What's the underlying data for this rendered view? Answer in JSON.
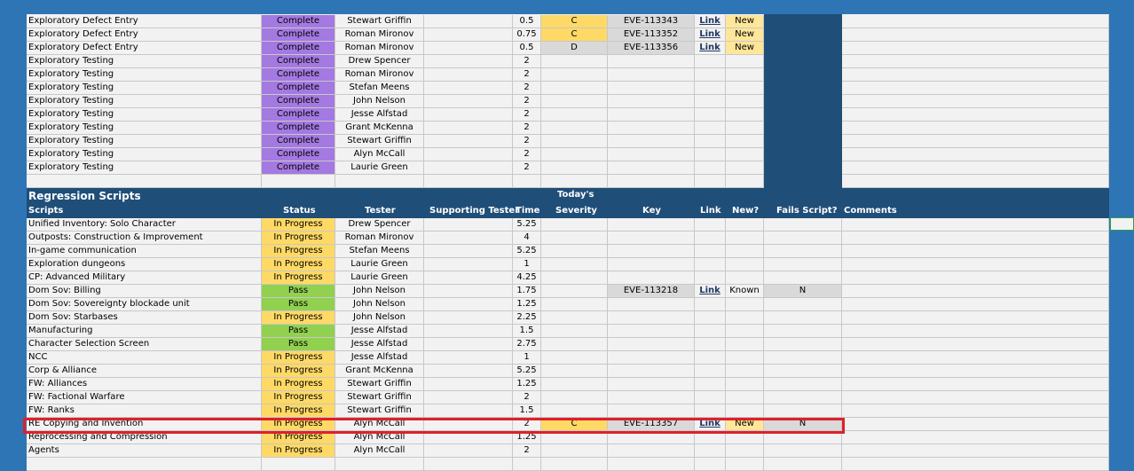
{
  "top_rows": [
    {
      "script": "Exploratory Defect Entry",
      "status": "Complete",
      "tester": "Stewart Griffin",
      "time": "0.5",
      "severity": "C",
      "key": "EVE-113343",
      "link": "Link",
      "new": "New"
    },
    {
      "script": "Exploratory Defect Entry",
      "status": "Complete",
      "tester": "Roman Mironov",
      "time": "0.75",
      "severity": "C",
      "key": "EVE-113352",
      "link": "Link",
      "new": "New"
    },
    {
      "script": "Exploratory Defect Entry",
      "status": "Complete",
      "tester": "Roman Mironov",
      "time": "0.5",
      "severity": "D",
      "key": "EVE-113356",
      "link": "Link",
      "new": "New"
    },
    {
      "script": "Exploratory Testing",
      "status": "Complete",
      "tester": "Drew Spencer",
      "time": "2"
    },
    {
      "script": "Exploratory Testing",
      "status": "Complete",
      "tester": "Roman Mironov",
      "time": "2"
    },
    {
      "script": "Exploratory Testing",
      "status": "Complete",
      "tester": "Stefan Meens",
      "time": "2"
    },
    {
      "script": "Exploratory Testing",
      "status": "Complete",
      "tester": "John Nelson",
      "time": "2"
    },
    {
      "script": "Exploratory Testing",
      "status": "Complete",
      "tester": "Jesse Alfstad",
      "time": "2"
    },
    {
      "script": "Exploratory Testing",
      "status": "Complete",
      "tester": "Grant McKenna",
      "time": "2"
    },
    {
      "script": "Exploratory Testing",
      "status": "Complete",
      "tester": "Stewart Griffin",
      "time": "2"
    },
    {
      "script": "Exploratory Testing",
      "status": "Complete",
      "tester": "Alyn McCall",
      "time": "2"
    },
    {
      "script": "Exploratory Testing",
      "status": "Complete",
      "tester": "Laurie Green",
      "time": "2"
    }
  ],
  "section": {
    "title": "Regression Scripts",
    "headers": {
      "scripts": "Scripts",
      "status": "Status",
      "tester": "Tester",
      "supporting": "Supporting Tester",
      "time": "Time",
      "severity_line1": "Today's",
      "severity_line2": "Severity",
      "key": "Key",
      "link": "Link",
      "new": "New?",
      "fails": "Fails Script?",
      "comments": "Comments"
    }
  },
  "regression_rows": [
    {
      "script": "Unified Inventory: Solo Character",
      "status": "In Progress",
      "tester": "Drew Spencer",
      "time": "5.25"
    },
    {
      "script": "Outposts: Construction & Improvement",
      "status": "In Progress",
      "tester": "Roman Mironov",
      "time": "4"
    },
    {
      "script": "In-game communication",
      "status": "In Progress",
      "tester": "Stefan Meens",
      "time": "5.25"
    },
    {
      "script": "Exploration dungeons",
      "status": "In Progress",
      "tester": "Laurie Green",
      "time": "1"
    },
    {
      "script": "CP: Advanced Military",
      "status": "In Progress",
      "tester": "Laurie Green",
      "time": "4.25"
    },
    {
      "script": "Dom Sov: Billing",
      "status": "Pass",
      "tester": "John Nelson",
      "time": "1.75",
      "key": "EVE-113218",
      "link": "Link",
      "new": "Known",
      "fails": "N"
    },
    {
      "script": "Dom Sov: Sovereignty blockade unit",
      "status": "Pass",
      "tester": "John Nelson",
      "time": "1.25"
    },
    {
      "script": "Dom Sov: Starbases",
      "status": "In Progress",
      "tester": "John Nelson",
      "time": "2.25"
    },
    {
      "script": "Manufacturing",
      "status": "Pass",
      "tester": "Jesse Alfstad",
      "time": "1.5"
    },
    {
      "script": "Character Selection Screen",
      "status": "Pass",
      "tester": "Jesse Alfstad",
      "time": "2.75"
    },
    {
      "script": "NCC",
      "status": "In Progress",
      "tester": "Jesse Alfstad",
      "time": "1"
    },
    {
      "script": "Corp & Alliance",
      "status": "In Progress",
      "tester": "Grant McKenna",
      "time": "5.25"
    },
    {
      "script": "FW: Alliances",
      "status": "In Progress",
      "tester": "Stewart Griffin",
      "time": "1.25"
    },
    {
      "script": "FW: Factional Warfare",
      "status": "In Progress",
      "tester": "Stewart Griffin",
      "time": "2"
    },
    {
      "script": "FW: Ranks",
      "status": "In Progress",
      "tester": "Stewart Griffin",
      "time": "1.5"
    },
    {
      "script": "RE Copying and Invention",
      "status": "In Progress",
      "tester": "Alyn McCall",
      "time": "2",
      "severity": "C",
      "key": "EVE-113357",
      "link": "Link",
      "new": "New",
      "fails": "N",
      "highlighted": true
    },
    {
      "script": "Reprocessing and Compression",
      "status": "In Progress",
      "tester": "Alyn McCall",
      "time": "1.25"
    },
    {
      "script": "Agents",
      "status": "In Progress",
      "tester": "Alyn McCall",
      "time": "2"
    }
  ],
  "colors": {
    "complete": "#a479e1",
    "in_progress": "#ffd966",
    "pass": "#92d050",
    "header_bg": "#1f4e79",
    "highlight_border": "#e0202a",
    "frame": "#2e75b6"
  }
}
